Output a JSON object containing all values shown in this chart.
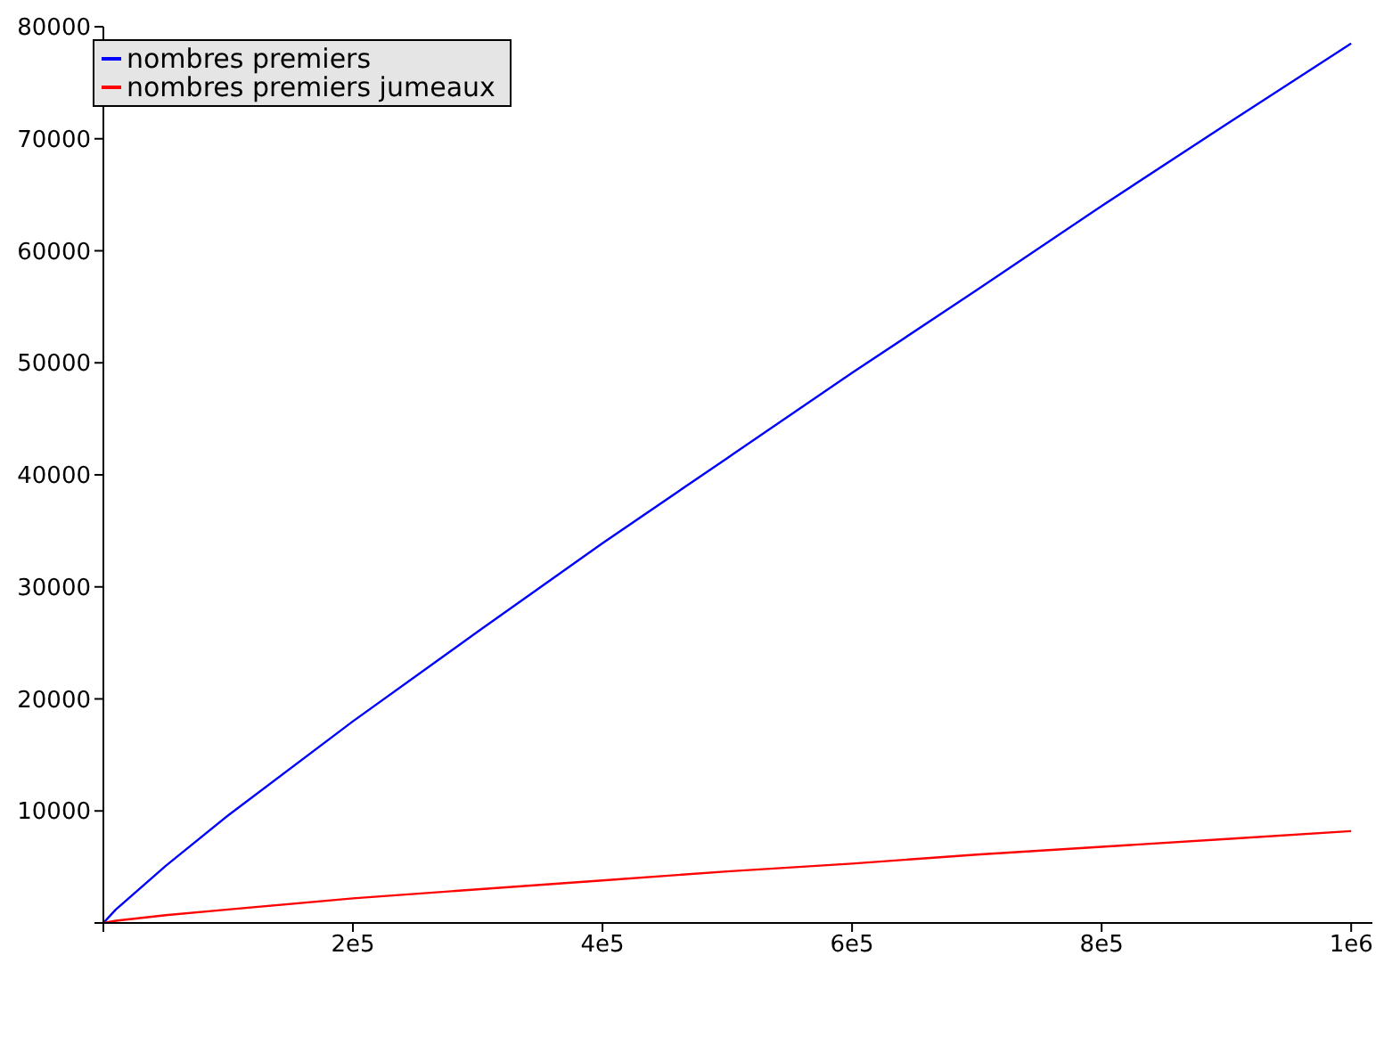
{
  "chart_data": {
    "type": "line",
    "x": [
      0,
      10000,
      50000,
      100000,
      200000,
      300000,
      400000,
      500000,
      600000,
      700000,
      800000,
      900000,
      1000000
    ],
    "series": [
      {
        "name": "nombres premiers",
        "color": "#0000ff",
        "values": [
          0,
          1200,
          5100,
          9600,
          18000,
          26000,
          33900,
          41500,
          49100,
          56500,
          64000,
          71300,
          78500
        ]
      },
      {
        "name": "nombres premiers jumeaux",
        "color": "#ff0000",
        "values": [
          0,
          200,
          700,
          1200,
          2200,
          3000,
          3800,
          4600,
          5300,
          6100,
          6800,
          7500,
          8200
        ]
      }
    ],
    "xlim": [
      0,
      1017000
    ],
    "xticks": [
      {
        "value": 0,
        "label": null
      },
      {
        "value": 200000,
        "label": "2e5"
      },
      {
        "value": 400000,
        "label": "4e5"
      },
      {
        "value": 600000,
        "label": "6e5"
      },
      {
        "value": 800000,
        "label": "8e5"
      },
      {
        "value": 1000000,
        "label": "1e6"
      }
    ],
    "ylim": [
      0,
      80000
    ],
    "yticks": [
      {
        "value": 0,
        "label": null
      },
      10000,
      20000,
      30000,
      40000,
      50000,
      60000,
      70000,
      80000
    ],
    "grid": false,
    "legend": "top left",
    "marker": "none",
    "line_style": "solid"
  }
}
